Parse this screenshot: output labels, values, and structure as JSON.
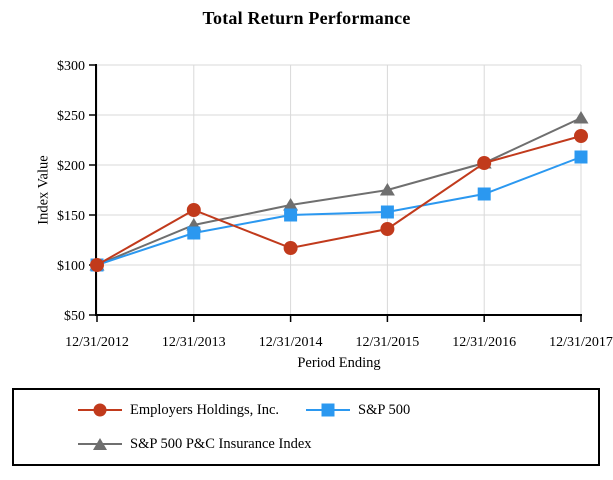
{
  "chart_data": {
    "type": "line",
    "title": "Total Return Performance",
    "xlabel": "Period Ending",
    "ylabel": "Index Value",
    "categories": [
      "12/31/2012",
      "12/31/2013",
      "12/31/2014",
      "12/31/2015",
      "12/31/2016",
      "12/31/2017"
    ],
    "ylim": [
      50,
      300
    ],
    "y_ticks": [
      300,
      250,
      200,
      150,
      100,
      50
    ],
    "y_tick_labels": [
      "$300",
      "$250",
      "$200",
      "$150",
      "$100",
      "$50"
    ],
    "grid": true,
    "legend_position": "boxed-below-chart",
    "colors": {
      "gridline": "#d9d9d9",
      "axis": "#000000"
    },
    "series": [
      {
        "name": "Employers Holdings, Inc.",
        "marker": "circle",
        "color": "#c13a1c",
        "values": [
          100,
          155,
          117,
          136,
          202,
          229
        ]
      },
      {
        "name": "S&P 500",
        "marker": "square",
        "color": "#2b98f0",
        "values": [
          100,
          132,
          150,
          153,
          171,
          208
        ]
      },
      {
        "name": "S&P 500 P&C Insurance Index",
        "marker": "triangle",
        "color": "#6f6f6f",
        "values": [
          100,
          140,
          160,
          175,
          202,
          247
        ]
      }
    ]
  }
}
